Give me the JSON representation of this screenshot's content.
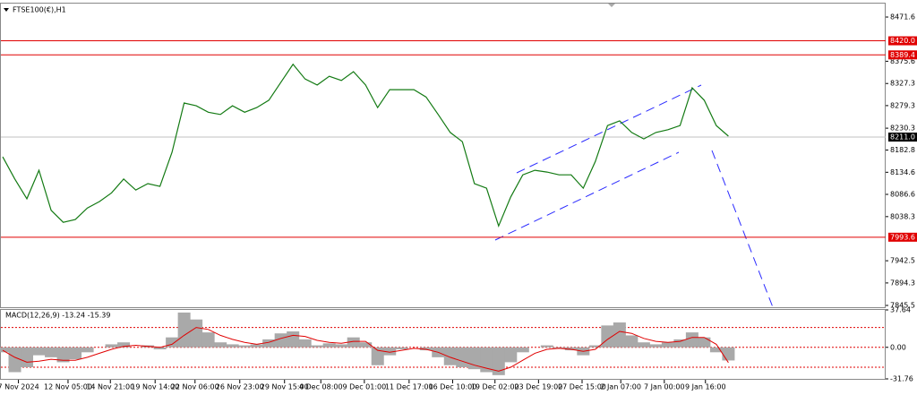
{
  "chart_data": [
    {
      "type": "line",
      "title": "FTSE100(€),H1",
      "xlim": [
        -0.15,
        73
      ],
      "ylim": [
        7841.6,
        8500.8
      ],
      "xticks": [
        {
          "value": 1.3,
          "label": "7 Nov 2024"
        },
        {
          "value": 5.4,
          "label": "12 Nov 05:00"
        },
        {
          "value": 8.9,
          "label": "14 Nov 21:00"
        },
        {
          "value": 12.6,
          "label": "19 Nov 14:00"
        },
        {
          "value": 15.9,
          "label": "22 Nov 06:00"
        },
        {
          "value": 19.6,
          "label": "26 Nov 23:00"
        },
        {
          "value": 23.3,
          "label": "29 Nov 15:00"
        },
        {
          "value": 26.3,
          "label": "4 Dec 08:00"
        },
        {
          "value": 29.9,
          "label": "9 Dec 01:00"
        },
        {
          "value": 33.6,
          "label": "11 Dec 17:00"
        },
        {
          "value": 37.2,
          "label": "16 Dec 10:00"
        },
        {
          "value": 40.7,
          "label": "19 Dec 02:00"
        },
        {
          "value": 44.3,
          "label": "23 Dec 19:00"
        },
        {
          "value": 47.9,
          "label": "27 Dec 15:00"
        },
        {
          "value": 51.1,
          "label": "2 Jan 07:00"
        },
        {
          "value": 54.7,
          "label": "7 Jan 00:00"
        },
        {
          "value": 58.1,
          "label": "9 Jan 16:00"
        }
      ],
      "yticks": [
        8471.6,
        8375.6,
        8327.3,
        8279.3,
        8230.3,
        8182.8,
        8134.6,
        8086.6,
        8038.3,
        7942.5,
        7894.3,
        7845.5
      ],
      "levels": [
        {
          "value": 8420,
          "label": "8420.0",
          "color": "#e00000"
        },
        {
          "value": 8389.4,
          "label": "8389.4",
          "color": "#e00000"
        },
        {
          "value": 7993.6,
          "label": "7993.6",
          "color": "#e00000"
        },
        {
          "value": 8211,
          "label": "8211.0",
          "color": "#c0c0c0"
        }
      ],
      "series": [
        {
          "color": "#137a13",
          "values": [
            8168,
            8120,
            8077,
            8139,
            8052,
            8026,
            8032,
            8057,
            8071,
            8090,
            8120,
            8096,
            8110,
            8104,
            8178,
            8285,
            8279,
            8265,
            8260,
            8279,
            8265,
            8275,
            8291,
            8330,
            8369,
            8337,
            8324,
            8343,
            8334,
            8353,
            8324,
            8275,
            8314,
            8314,
            8314,
            8298,
            8260,
            8221,
            8201,
            8110,
            8100,
            8018,
            8081,
            8129,
            8139,
            8135,
            8129,
            8129,
            8100,
            8158,
            8236,
            8246,
            8221,
            8207,
            8221,
            8227,
            8236,
            8318,
            8291,
            8236,
            8213
          ]
        }
      ]
    },
    {
      "type": "macd",
      "title": "MACD(12,26,9) -13.24 -15.39",
      "xlim": [
        -0.15,
        73
      ],
      "ylim": [
        -31.76,
        37.64
      ],
      "yticks": [
        37.64,
        {
          "value": 0,
          "label": "0.00"
        },
        -31.76
      ],
      "levels": [
        20,
        0,
        -20
      ],
      "histogram": {
        "color": "#a9a9a9",
        "values": [
          -5,
          -25,
          -20,
          -8,
          -10,
          -15,
          -12,
          -5,
          0,
          3,
          5,
          0,
          2,
          -2,
          10,
          35,
          28,
          15,
          5,
          3,
          2,
          3,
          8,
          14,
          16,
          8,
          2,
          4,
          3,
          10,
          5,
          -18,
          -8,
          -2,
          0,
          -3,
          -10,
          -18,
          -20,
          -22,
          -25,
          -28,
          -15,
          -5,
          0,
          2,
          -1,
          -3,
          -8,
          2,
          22,
          25,
          12,
          5,
          3,
          5,
          8,
          15,
          10,
          -5,
          -13.24
        ]
      },
      "signal": {
        "color": "#e00000",
        "values": [
          -3,
          -10,
          -15,
          -14,
          -12,
          -13,
          -13,
          -10,
          -6,
          -2,
          1,
          2,
          1,
          0,
          3,
          12,
          20,
          18,
          12,
          8,
          5,
          3,
          5,
          9,
          12,
          11,
          7,
          5,
          4,
          6,
          6,
          -3,
          -5,
          -3,
          -1,
          -2,
          -5,
          -10,
          -14,
          -18,
          -21,
          -24,
          -20,
          -13,
          -6,
          -2,
          -1,
          -2,
          -4,
          -2,
          8,
          16,
          14,
          9,
          6,
          5,
          6,
          10,
          10,
          3,
          -15.39
        ]
      }
    }
  ]
}
